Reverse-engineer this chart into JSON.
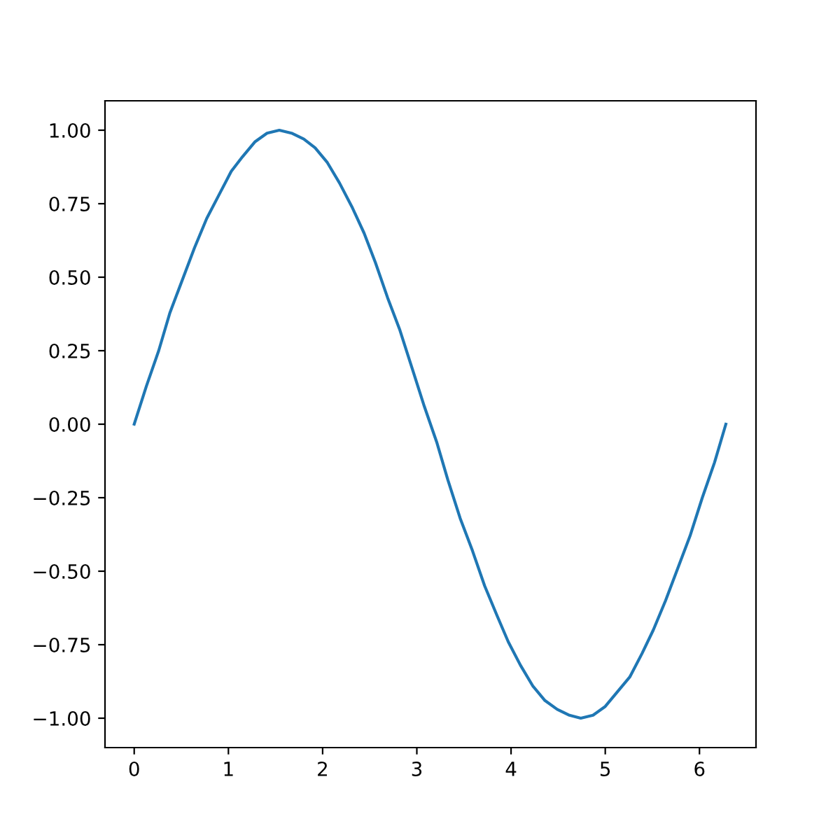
{
  "chart_data": {
    "type": "line",
    "x": [
      0,
      0.13,
      0.26,
      0.38,
      0.51,
      0.64,
      0.77,
      0.9,
      1.03,
      1.15,
      1.28,
      1.41,
      1.54,
      1.67,
      1.8,
      1.92,
      2.05,
      2.18,
      2.31,
      2.44,
      2.56,
      2.69,
      2.82,
      2.95,
      3.08,
      3.21,
      3.33,
      3.46,
      3.59,
      3.72,
      3.85,
      3.97,
      4.1,
      4.23,
      4.36,
      4.49,
      4.62,
      4.74,
      4.87,
      5.0,
      5.13,
      5.26,
      5.39,
      5.51,
      5.64,
      5.77,
      5.9,
      6.03,
      6.16,
      6.28
    ],
    "series": [
      {
        "color": "#1f77b4",
        "values": [
          0,
          0.13,
          0.25,
          0.38,
          0.49,
          0.6,
          0.7,
          0.78,
          0.86,
          0.91,
          0.96,
          0.99,
          1.0,
          0.99,
          0.97,
          0.94,
          0.89,
          0.82,
          0.74,
          0.65,
          0.55,
          0.43,
          0.32,
          0.19,
          0.06,
          -0.06,
          -0.19,
          -0.32,
          -0.43,
          -0.55,
          -0.65,
          -0.74,
          -0.82,
          -0.89,
          -0.94,
          -0.97,
          -0.99,
          -1.0,
          -0.99,
          -0.96,
          -0.91,
          -0.86,
          -0.78,
          -0.7,
          -0.6,
          -0.49,
          -0.38,
          -0.25,
          -0.13,
          0
        ]
      }
    ],
    "xlim": [
      -0.31,
      6.6
    ],
    "xticks": [
      0,
      1,
      2,
      3,
      4,
      5,
      6
    ],
    "ylim": [
      -1.1,
      1.1
    ],
    "yticks": [
      {
        "value": -1,
        "label": "−1.00"
      },
      {
        "value": -0.75,
        "label": "−0.75"
      },
      {
        "value": -0.5,
        "label": "−0.50"
      },
      {
        "value": -0.25,
        "label": "−0.25"
      },
      {
        "value": 0,
        "label": "0.00"
      },
      {
        "value": 0.25,
        "label": "0.25"
      },
      {
        "value": 0.5,
        "label": "0.50"
      },
      {
        "value": 0.75,
        "label": "0.75"
      },
      {
        "value": 1,
        "label": "1.00"
      }
    ],
    "grid": false,
    "marker": "none",
    "line_style": "solid"
  }
}
